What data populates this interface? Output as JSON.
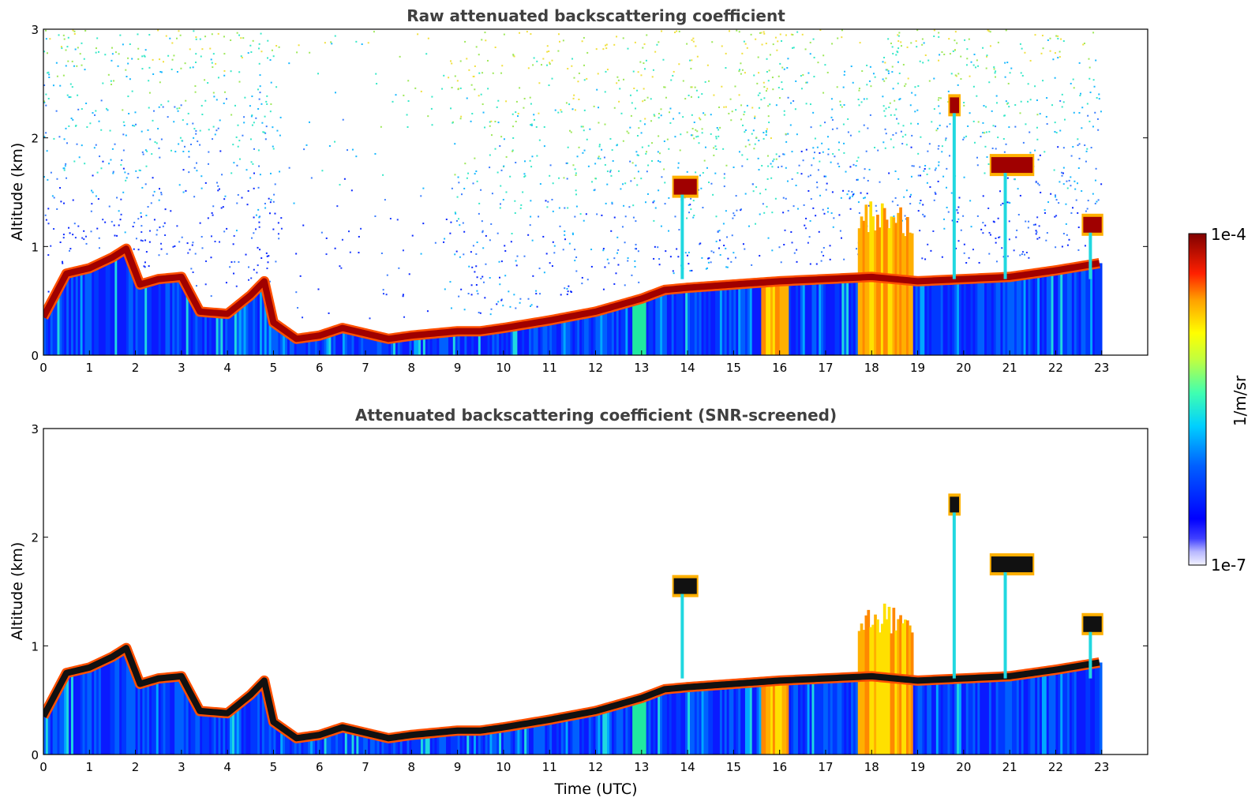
{
  "chart_data": [
    {
      "type": "heatmap",
      "title": "Raw attenuated backscattering coefficient",
      "xlabel": "",
      "ylabel": "Altitude (km)",
      "xlim": [
        0,
        24
      ],
      "ylim": [
        0,
        3
      ],
      "x_ticks": [
        "0",
        "1",
        "2",
        "3",
        "4",
        "5",
        "6",
        "7",
        "8",
        "9",
        "10",
        "11",
        "12",
        "13",
        "14",
        "15",
        "16",
        "17",
        "18",
        "19",
        "20",
        "21",
        "22",
        "23"
      ],
      "y_ticks": [
        "0",
        "1",
        "2",
        "3"
      ],
      "data_end_time": 23,
      "layer_top_km": [
        [
          0,
          0.35
        ],
        [
          0.5,
          0.75
        ],
        [
          1,
          0.8
        ],
        [
          1.5,
          0.9
        ],
        [
          1.8,
          0.98
        ],
        [
          2.1,
          0.65
        ],
        [
          2.5,
          0.7
        ],
        [
          3.0,
          0.72
        ],
        [
          3.4,
          0.4
        ],
        [
          4.0,
          0.38
        ],
        [
          4.5,
          0.55
        ],
        [
          4.8,
          0.68
        ],
        [
          5.0,
          0.3
        ],
        [
          5.5,
          0.15
        ],
        [
          6.0,
          0.18
        ],
        [
          6.5,
          0.25
        ],
        [
          7.0,
          0.2
        ],
        [
          7.5,
          0.15
        ],
        [
          8.0,
          0.18
        ],
        [
          8.5,
          0.2
        ],
        [
          9.0,
          0.22
        ],
        [
          9.5,
          0.22
        ],
        [
          10.0,
          0.25
        ],
        [
          11.0,
          0.32
        ],
        [
          12.0,
          0.4
        ],
        [
          13.0,
          0.52
        ],
        [
          13.5,
          0.6
        ],
        [
          14.0,
          0.62
        ],
        [
          15.0,
          0.65
        ],
        [
          16.0,
          0.68
        ],
        [
          17.0,
          0.7
        ],
        [
          18.0,
          0.72
        ],
        [
          19.0,
          0.68
        ],
        [
          20.0,
          0.7
        ],
        [
          21.0,
          0.72
        ],
        [
          22.0,
          0.78
        ],
        [
          23.0,
          0.85
        ]
      ],
      "elevated_layers_km": [
        {
          "x": [
            13.7,
            14.2
          ],
          "y": 1.55
        },
        {
          "x": [
            19.7,
            19.9
          ],
          "y": 2.3
        },
        {
          "x": [
            20.6,
            21.5
          ],
          "y": 1.75
        },
        {
          "x": [
            22.6,
            23.0
          ],
          "y": 1.2
        }
      ]
    },
    {
      "type": "heatmap",
      "title": "Attenuated backscattering coefficient (SNR-screened)",
      "xlabel": "Time (UTC)",
      "ylabel": "Altitude (km)",
      "xlim": [
        0,
        24
      ],
      "ylim": [
        0,
        3
      ],
      "x_ticks": [
        "0",
        "1",
        "2",
        "3",
        "4",
        "5",
        "6",
        "7",
        "8",
        "9",
        "10",
        "11",
        "12",
        "13",
        "14",
        "15",
        "16",
        "17",
        "18",
        "19",
        "20",
        "21",
        "22",
        "23"
      ],
      "y_ticks": [
        "0",
        "1",
        "2",
        "3"
      ],
      "screened": true
    }
  ],
  "colorbar": {
    "label": "1/m/sr",
    "max_label": "1e-4",
    "min_label": "1e-7",
    "scale": "log",
    "range": [
      1e-07,
      0.0001
    ]
  }
}
